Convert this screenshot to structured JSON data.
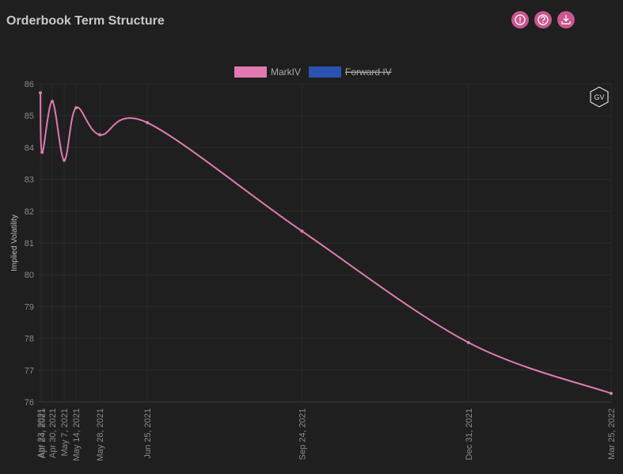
{
  "chart_data": {
    "type": "line",
    "title": "Orderbook Term Structure",
    "ylabel": "Implied Volatility",
    "watermark": "GV",
    "x": [
      "Apr 23, 2021",
      "Apr 24, 2021",
      "Apr 30, 2021",
      "May 7, 2021",
      "May 14, 2021",
      "May 28, 2021",
      "Jun 25, 2021",
      "Sep 24, 2021",
      "Dec 31, 2021",
      "Mar 25, 2022"
    ],
    "xlim": [
      "Apr 23, 2021",
      "Mar 25, 2022"
    ],
    "series": [
      {
        "name": "MarkIV",
        "color": "#e07ab0",
        "values": [
          85.72,
          83.85,
          85.45,
          83.6,
          85.25,
          84.4,
          84.78,
          81.37,
          77.87,
          76.27
        ]
      },
      {
        "name": "Forward IV",
        "color": "#2a52b0",
        "hidden": true,
        "values": [
          null,
          null,
          null,
          null,
          null,
          null,
          null,
          null,
          null,
          null
        ]
      }
    ],
    "ylim": [
      76,
      86
    ],
    "yticks": [
      76,
      77,
      78,
      79,
      80,
      81,
      82,
      83,
      84,
      85,
      86
    ],
    "grid": true,
    "legend": "top"
  }
}
